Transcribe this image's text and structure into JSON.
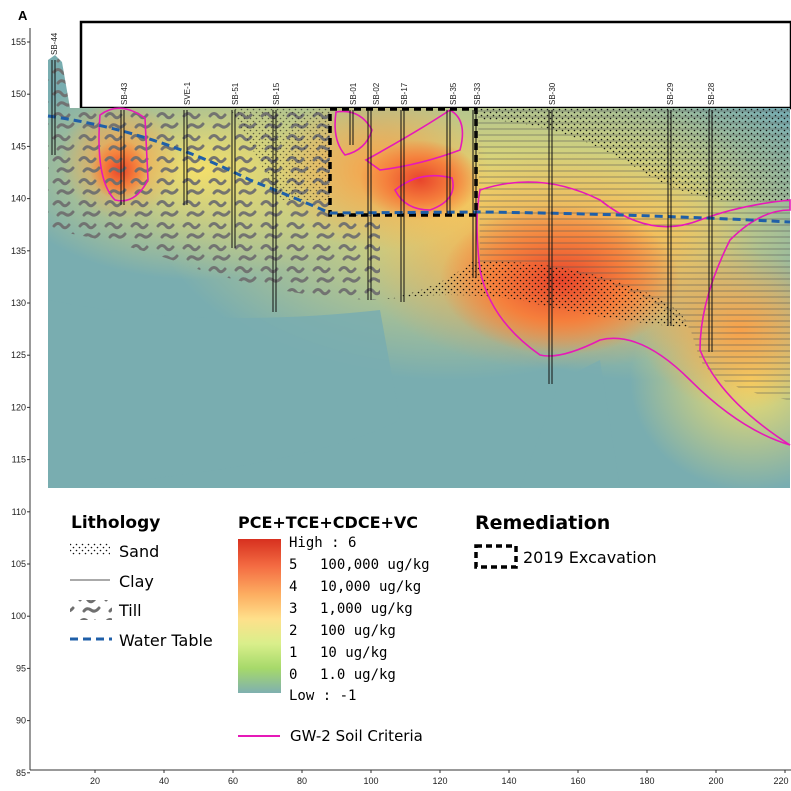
{
  "panel_label": "A",
  "y_ticks": [
    "155",
    "150",
    "145",
    "140",
    "135",
    "130",
    "125",
    "120",
    "115",
    "110",
    "105",
    "100",
    "95",
    "90",
    "85"
  ],
  "x_ticks": [
    "20",
    "40",
    "60",
    "80",
    "100",
    "120",
    "140",
    "160",
    "180",
    "200",
    "220"
  ],
  "boreholes": [
    {
      "id": "bh-sb-44",
      "label": "SB-44"
    },
    {
      "id": "bh-sb-43",
      "label": "SB-43"
    },
    {
      "id": "bh-sve-1",
      "label": "SVE-1"
    },
    {
      "id": "bh-sb-51",
      "label": "SB-51"
    },
    {
      "id": "bh-sb-15",
      "label": "SB-15"
    },
    {
      "id": "bh-sb-01",
      "label": "SB-01"
    },
    {
      "id": "bh-sb-02",
      "label": "SB-02"
    },
    {
      "id": "bh-sb-17",
      "label": "SB-17"
    },
    {
      "id": "bh-sb-35",
      "label": "SB-35"
    },
    {
      "id": "bh-sb-33",
      "label": "SB-33"
    },
    {
      "id": "bh-sb-30",
      "label": "SB-30"
    },
    {
      "id": "bh-sb-29",
      "label": "SB-29"
    },
    {
      "id": "bh-sb-28",
      "label": "SB-28"
    }
  ],
  "legend": {
    "lithology": {
      "title": "Lithology",
      "items": [
        "Sand",
        "Clay",
        "Till",
        "Water Table"
      ]
    },
    "concentration": {
      "title": "PCE+TCE+CDCE+VC",
      "high": "High : 6",
      "low": "Low : -1",
      "rows": [
        {
          "n": "5",
          "label": "100,000 ug/kg"
        },
        {
          "n": "4",
          "label": "10,000 ug/kg"
        },
        {
          "n": "3",
          "label": "1,000 ug/kg"
        },
        {
          "n": "2",
          "label": "100 ug/kg"
        },
        {
          "n": "1",
          "label": "10 ug/kg"
        },
        {
          "n": "0",
          "label": "1.0 ug/kg"
        }
      ],
      "ramp_colors": [
        "#d7301f",
        "#f46d43",
        "#fdae61",
        "#fee08b",
        "#d9ef8b",
        "#a6d96a",
        "#7fb0b0"
      ],
      "criteria_label": "GW-2 Soil Criteria",
      "criteria_color": "#e619b8"
    },
    "remediation": {
      "title": "Remediation",
      "item": "2019 Excavation"
    }
  },
  "colors": {
    "water_table": "#1f5fa8",
    "till": "#6f6f6f",
    "low_background": "#79adb0"
  }
}
